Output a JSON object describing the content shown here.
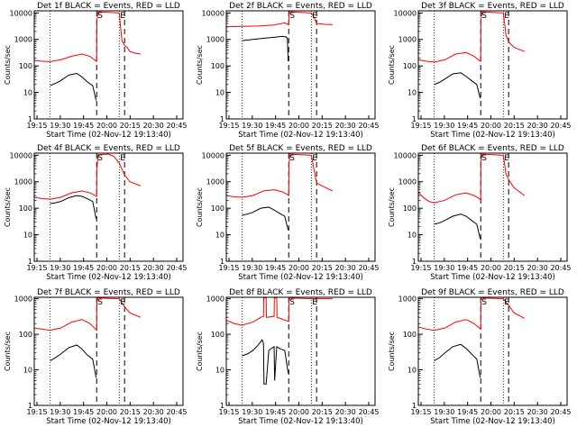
{
  "figure": {
    "background": "#ffffff",
    "axis_color": "#000000",
    "events_color": "#000000",
    "lld_color": "#ff0000"
  },
  "chart_data": [
    {
      "type": "line",
      "title": "Det 1f BLACK = Events, RED = LLD",
      "xlabel": "Start Time (02-Nov-12 19:13:40)",
      "ylabel": "Counts/sec",
      "x_ticks": [
        "19:15",
        "19:30",
        "19:45",
        "20:00",
        "20:15",
        "20:30",
        "20:45"
      ],
      "y_ticks": [
        "1",
        "10",
        "100",
        "1000",
        "10000"
      ],
      "y_scale": "log",
      "xlim_minutes": [
        0,
        56
      ],
      "ylim": [
        1,
        12000
      ],
      "markers": [
        {
          "label": "S",
          "t": 23.5
        },
        {
          "label": "E",
          "t": 32
        }
      ],
      "dashed_lines_t": [
        23.5,
        34
      ],
      "dotted_lines_t": [
        6,
        32
      ],
      "series": [
        {
          "name": "RED",
          "color": "#ff0000",
          "x": [
            0,
            3,
            6,
            10,
            14,
            18,
            21,
            23,
            23.5,
            23.6,
            24,
            32,
            33,
            34,
            35,
            36,
            38,
            40
          ],
          "y": [
            160,
            150,
            145,
            170,
            230,
            280,
            230,
            160,
            150,
            5000,
            11000,
            10000,
            900,
            600,
            500,
            350,
            300,
            280
          ]
        },
        {
          "name": "BLACK",
          "color": "#000000",
          "x": [
            6,
            8,
            10,
            13,
            16,
            18,
            20,
            22,
            23.3
          ],
          "y": [
            18,
            22,
            28,
            45,
            52,
            38,
            25,
            18,
            5
          ]
        }
      ]
    },
    {
      "type": "line",
      "title": "Det 2f BLACK = Events, RED = LLD",
      "xlabel": "Start Time (02-Nov-12 19:13:40)",
      "ylabel": "Counts/sec",
      "x_ticks": [
        "19:15",
        "19:30",
        "19:45",
        "20:00",
        "20:15",
        "20:30",
        "20:45"
      ],
      "y_ticks": [
        "1",
        "10",
        "100",
        "1000",
        "10000"
      ],
      "y_scale": "log",
      "xlim_minutes": [
        0,
        56
      ],
      "ylim": [
        1,
        12000
      ],
      "markers": [
        {
          "label": "S",
          "t": 23.5
        },
        {
          "label": "E",
          "t": 32
        }
      ],
      "dashed_lines_t": [
        23.5,
        34
      ],
      "dotted_lines_t": [
        6,
        32
      ],
      "series": [
        {
          "name": "RED",
          "color": "#ff0000",
          "x": [
            0,
            6,
            12,
            18,
            22,
            23.5,
            23.6,
            24,
            32,
            33,
            34,
            37,
            40
          ],
          "y": [
            3000,
            3100,
            3200,
            3500,
            4200,
            3600,
            9000,
            11000,
            10000,
            7000,
            4000,
            3700,
            3600
          ]
        },
        {
          "name": "BLACK",
          "color": "#000000",
          "x": [
            6,
            10,
            14,
            18,
            21,
            22.5,
            23,
            23.3
          ],
          "y": [
            900,
            1000,
            1100,
            1200,
            1300,
            1250,
            1100,
            150
          ]
        }
      ]
    },
    {
      "type": "line",
      "title": "Det 3f BLACK = Events, RED = LLD",
      "xlabel": "Start Time (02-Nov-12 19:13:40)",
      "ylabel": "Counts/sec",
      "x_ticks": [
        "19:15",
        "19:30",
        "19:45",
        "20:00",
        "20:15",
        "20:30",
        "20:45"
      ],
      "y_ticks": [
        "1",
        "10",
        "100",
        "1000",
        "10000"
      ],
      "y_scale": "log",
      "xlim_minutes": [
        0,
        56
      ],
      "ylim": [
        1,
        12000
      ],
      "markers": [
        {
          "label": "S",
          "t": 23.5
        },
        {
          "label": "E",
          "t": 32
        }
      ],
      "dashed_lines_t": [
        23.5,
        34
      ],
      "dotted_lines_t": [
        6,
        32
      ],
      "series": [
        {
          "name": "RED",
          "color": "#ff0000",
          "x": [
            0,
            3,
            6,
            10,
            14,
            18,
            21,
            23,
            23.5,
            23.6,
            24,
            32,
            33,
            34,
            36,
            40
          ],
          "y": [
            170,
            150,
            140,
            170,
            280,
            320,
            230,
            160,
            150,
            6000,
            11000,
            10000,
            1500,
            800,
            500,
            350
          ]
        },
        {
          "name": "BLACK",
          "color": "#000000",
          "x": [
            6,
            8,
            10,
            13,
            16,
            18,
            20,
            22,
            23.3
          ],
          "y": [
            20,
            24,
            32,
            50,
            55,
            40,
            28,
            20,
            6
          ]
        }
      ]
    },
    {
      "type": "line",
      "title": "Det 4f BLACK = Events, RED = LLD",
      "xlabel": "Start Time (02-Nov-12 19:13:40)",
      "ylabel": "Counts/sec",
      "x_ticks": [
        "19:15",
        "19:30",
        "19:45",
        "20:00",
        "20:15",
        "20:30",
        "20:45"
      ],
      "y_ticks": [
        "1",
        "10",
        "100",
        "1000",
        "10000"
      ],
      "y_scale": "log",
      "xlim_minutes": [
        0,
        56
      ],
      "ylim": [
        1,
        12000
      ],
      "markers": [
        {
          "label": "S",
          "t": 23.5
        },
        {
          "label": "E",
          "t": 32
        }
      ],
      "dashed_lines_t": [
        23.5,
        34
      ],
      "dotted_lines_t": [
        6,
        32
      ],
      "series": [
        {
          "name": "RED",
          "color": "#ff0000",
          "x": [
            0,
            3,
            6,
            10,
            14,
            18,
            21,
            23,
            23.5,
            23.6,
            24,
            28,
            30,
            32,
            33,
            34,
            36,
            40
          ],
          "y": [
            260,
            230,
            220,
            260,
            380,
            450,
            380,
            300,
            280,
            3000,
            10500,
            11000,
            9000,
            5000,
            3000,
            1800,
            1000,
            700
          ]
        },
        {
          "name": "BLACK",
          "color": "#000000",
          "x": [
            6,
            8,
            10,
            13,
            16,
            18,
            20,
            22,
            23.3
          ],
          "y": [
            150,
            160,
            180,
            250,
            300,
            280,
            230,
            180,
            40
          ]
        }
      ]
    },
    {
      "type": "line",
      "title": "Det 5f BLACK = Events, RED = LLD",
      "xlabel": "Start Time (02-Nov-12 19:13:40)",
      "ylabel": "Counts/sec",
      "x_ticks": [
        "19:15",
        "19:30",
        "19:45",
        "20:00",
        "20:15",
        "20:30",
        "20:45"
      ],
      "y_ticks": [
        "1",
        "10",
        "100",
        "1000",
        "10000"
      ],
      "y_scale": "log",
      "xlim_minutes": [
        0,
        56
      ],
      "ylim": [
        1,
        12000
      ],
      "markers": [
        {
          "label": "S",
          "t": 23.5
        },
        {
          "label": "E",
          "t": 32
        }
      ],
      "dashed_lines_t": [
        23.5,
        34
      ],
      "dotted_lines_t": [
        6,
        32
      ],
      "series": [
        {
          "name": "RED",
          "color": "#ff0000",
          "x": [
            0,
            3,
            6,
            10,
            14,
            18,
            21,
            23,
            23.5,
            23.6,
            24,
            32,
            34,
            36,
            40
          ],
          "y": [
            300,
            270,
            260,
            300,
            450,
            500,
            420,
            330,
            300,
            5000,
            11000,
            10000,
            900,
            700,
            450
          ]
        },
        {
          "name": "BLACK",
          "color": "#000000",
          "x": [
            6,
            8,
            10,
            13,
            16,
            18,
            20,
            22,
            23.3
          ],
          "y": [
            55,
            60,
            70,
            100,
            110,
            85,
            65,
            50,
            15
          ]
        }
      ]
    },
    {
      "type": "line",
      "title": "Det 6f BLACK = Events, RED = LLD",
      "xlabel": "Start Time (02-Nov-12 19:13:40)",
      "ylabel": "Counts/sec",
      "x_ticks": [
        "19:15",
        "19:30",
        "19:45",
        "20:00",
        "20:15",
        "20:30",
        "20:45"
      ],
      "y_ticks": [
        "1",
        "10",
        "100",
        "1000",
        "10000"
      ],
      "y_scale": "log",
      "xlim_minutes": [
        0,
        56
      ],
      "ylim": [
        1,
        12000
      ],
      "markers": [
        {
          "label": "S",
          "t": 23.5
        },
        {
          "label": "E",
          "t": 32
        }
      ],
      "dashed_lines_t": [
        23.5,
        34
      ],
      "dotted_lines_t": [
        6,
        32
      ],
      "series": [
        {
          "name": "RED",
          "color": "#ff0000",
          "x": [
            0,
            2,
            4,
            6,
            10,
            14,
            18,
            21,
            23,
            23.5,
            23.6,
            24,
            32,
            33,
            34,
            36,
            40
          ],
          "y": [
            400,
            250,
            180,
            160,
            200,
            320,
            380,
            300,
            230,
            200,
            6000,
            11000,
            10000,
            2000,
            1200,
            600,
            300
          ]
        },
        {
          "name": "BLACK",
          "color": "#000000",
          "x": [
            6,
            8,
            10,
            13,
            16,
            18,
            20,
            22,
            23.3
          ],
          "y": [
            25,
            28,
            35,
            50,
            60,
            50,
            35,
            25,
            7
          ]
        }
      ]
    },
    {
      "type": "line",
      "title": "Det 7f BLACK = Events, RED = LLD",
      "xlabel": "Start Time (02-Nov-12 19:13:40)",
      "ylabel": "Counts/sec",
      "x_ticks": [
        "19:15",
        "19:30",
        "19:45",
        "20:00",
        "20:15",
        "20:30",
        "20:45"
      ],
      "y_ticks": [
        "1",
        "10",
        "100",
        "1000"
      ],
      "y_scale": "log",
      "xlim_minutes": [
        0,
        56
      ],
      "ylim": [
        1,
        1100
      ],
      "markers": [
        {
          "label": "S",
          "t": 23.5
        },
        {
          "label": "E",
          "t": 32
        }
      ],
      "dashed_lines_t": [
        23.5,
        34
      ],
      "dotted_lines_t": [
        6,
        32
      ],
      "series": [
        {
          "name": "RED",
          "color": "#ff0000",
          "x": [
            0,
            3,
            6,
            10,
            14,
            18,
            21,
            23,
            23.5,
            23.6,
            24,
            32,
            34,
            36,
            40
          ],
          "y": [
            150,
            140,
            130,
            150,
            220,
            260,
            200,
            140,
            130,
            800,
            1050,
            1000,
            600,
            400,
            300
          ]
        },
        {
          "name": "BLACK",
          "color": "#000000",
          "x": [
            6,
            8,
            10,
            13,
            16,
            18,
            20,
            22,
            23.3
          ],
          "y": [
            18,
            22,
            28,
            42,
            50,
            38,
            26,
            20,
            6
          ]
        }
      ]
    },
    {
      "type": "line",
      "title": "Det 8f BLACK = Events, RED = LLD",
      "xlabel": "Start Time (02-Nov-12 19:13:40)",
      "ylabel": "Counts/sec",
      "x_ticks": [
        "19:15",
        "19:30",
        "19:45",
        "20:00",
        "20:15",
        "20:30",
        "20:45"
      ],
      "y_ticks": [
        "1",
        "10",
        "100",
        "1000"
      ],
      "y_scale": "log",
      "xlim_minutes": [
        0,
        56
      ],
      "ylim": [
        1,
        1100
      ],
      "markers": [
        {
          "label": "S",
          "t": 23.5
        },
        {
          "label": "E",
          "t": 32
        }
      ],
      "dashed_lines_t": [
        23.5,
        34
      ],
      "dotted_lines_t": [
        6,
        32
      ],
      "series": [
        {
          "name": "RED",
          "color": "#ff0000",
          "x": [
            0,
            3,
            6,
            10,
            13,
            14,
            14.1,
            15,
            15.1,
            18,
            18.1,
            19,
            19.1,
            22,
            23.5,
            23.6,
            24,
            32,
            34,
            36,
            40
          ],
          "y": [
            250,
            200,
            180,
            220,
            300,
            320,
            1050,
            1050,
            300,
            320,
            1050,
            1050,
            300,
            250,
            230,
            900,
            1050,
            1000,
            1000,
            1000,
            1000
          ]
        },
        {
          "name": "BLACK",
          "color": "#000000",
          "x": [
            6,
            8,
            10,
            12,
            13.5,
            14,
            14.2,
            15,
            16,
            17,
            18,
            18.2,
            19,
            20,
            22,
            23.3
          ],
          "y": [
            25,
            28,
            35,
            50,
            70,
            55,
            4,
            4,
            35,
            40,
            45,
            5,
            45,
            40,
            35,
            8
          ]
        }
      ]
    },
    {
      "type": "line",
      "title": "Det 9f BLACK = Events, RED = LLD",
      "xlabel": "Start Time (02-Nov-12 19:13:40)",
      "ylabel": "Counts/sec",
      "x_ticks": [
        "19:15",
        "19:30",
        "19:45",
        "20:00",
        "20:15",
        "20:30",
        "20:45"
      ],
      "y_ticks": [
        "1",
        "10",
        "100",
        "1000"
      ],
      "y_scale": "log",
      "xlim_minutes": [
        0,
        56
      ],
      "ylim": [
        1,
        1100
      ],
      "markers": [
        {
          "label": "S",
          "t": 23.5
        },
        {
          "label": "E",
          "t": 32
        }
      ],
      "dashed_lines_t": [
        23.5,
        34
      ],
      "dotted_lines_t": [
        6,
        32
      ],
      "series": [
        {
          "name": "RED",
          "color": "#ff0000",
          "x": [
            0,
            3,
            6,
            10,
            14,
            18,
            21,
            23,
            23.5,
            23.6,
            24,
            32,
            34,
            36,
            40
          ],
          "y": [
            160,
            140,
            130,
            150,
            220,
            260,
            200,
            150,
            140,
            900,
            1050,
            1000,
            650,
            400,
            280
          ]
        },
        {
          "name": "BLACK",
          "color": "#000000",
          "x": [
            6,
            8,
            10,
            13,
            16,
            18,
            20,
            22,
            23.3
          ],
          "y": [
            18,
            22,
            30,
            45,
            52,
            40,
            28,
            20,
            6
          ]
        }
      ]
    }
  ]
}
